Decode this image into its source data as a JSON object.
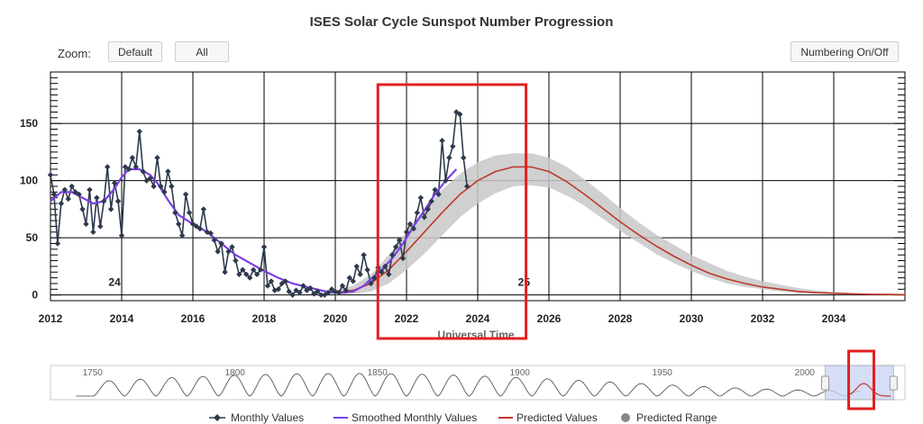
{
  "title": "ISES Solar Cycle Sunspot Number Progression",
  "zoom": {
    "label": "Zoom:",
    "buttons": [
      "Default",
      "All"
    ]
  },
  "numbering_button": "Numbering On/Off",
  "colors": {
    "monthly": "#2d3a4d",
    "smoothed": "#7b3fe4",
    "predicted": "#c0392b",
    "range": "#c8c8c8",
    "highlight": "#e02020",
    "navigator": "#c8d2f5"
  },
  "chart_data": {
    "type": "line",
    "title": "ISES Solar Cycle Sunspot Number Progression",
    "xlabel": "Universal Time",
    "ylabel": "",
    "xlim": [
      2012,
      2036
    ],
    "ylim": [
      -5,
      195
    ],
    "x_ticks": [
      "2012",
      "2014",
      "2016",
      "2018",
      "2020",
      "2022",
      "2024",
      "2026",
      "2028",
      "2030",
      "2032",
      "2034"
    ],
    "y_ticks": [
      "0",
      "50",
      "100",
      "150"
    ],
    "cycle_labels": [
      {
        "text": "24",
        "x": 2013.8,
        "y": 8
      },
      {
        "text": "25",
        "x": 2025.3,
        "y": 8
      }
    ],
    "series": [
      {
        "name": "Monthly Values",
        "kind": "monthly",
        "x": [
          2012.0,
          2012.1,
          2012.2,
          2012.3,
          2012.4,
          2012.5,
          2012.6,
          2012.7,
          2012.8,
          2012.9,
          2013.0,
          2013.1,
          2013.2,
          2013.3,
          2013.4,
          2013.5,
          2013.6,
          2013.7,
          2013.8,
          2013.9,
          2014.0,
          2014.1,
          2014.2,
          2014.3,
          2014.4,
          2014.5,
          2014.6,
          2014.7,
          2014.8,
          2014.9,
          2015.0,
          2015.1,
          2015.2,
          2015.3,
          2015.4,
          2015.5,
          2015.6,
          2015.7,
          2015.8,
          2015.9,
          2016.0,
          2016.1,
          2016.2,
          2016.3,
          2016.4,
          2016.5,
          2016.6,
          2016.7,
          2016.8,
          2016.9,
          2017.0,
          2017.1,
          2017.2,
          2017.3,
          2017.4,
          2017.5,
          2017.6,
          2017.7,
          2017.8,
          2017.9,
          2018.0,
          2018.1,
          2018.2,
          2018.3,
          2018.4,
          2018.5,
          2018.6,
          2018.7,
          2018.8,
          2018.9,
          2019.0,
          2019.1,
          2019.2,
          2019.3,
          2019.4,
          2019.5,
          2019.6,
          2019.7,
          2019.8,
          2019.9,
          2020.0,
          2020.1,
          2020.2,
          2020.3,
          2020.4,
          2020.5,
          2020.6,
          2020.7,
          2020.8,
          2020.9,
          2021.0,
          2021.1,
          2021.2,
          2021.3,
          2021.4,
          2021.5,
          2021.6,
          2021.7,
          2021.8,
          2021.9,
          2022.0,
          2022.1,
          2022.2,
          2022.3,
          2022.4,
          2022.5,
          2022.6,
          2022.7,
          2022.8,
          2022.9,
          2023.0,
          2023.1,
          2023.2,
          2023.3,
          2023.4,
          2023.5,
          2023.6,
          2023.7
        ],
        "y": [
          105,
          88,
          45,
          80,
          92,
          84,
          95,
          90,
          88,
          75,
          62,
          92,
          55,
          85,
          60,
          82,
          112,
          75,
          98,
          82,
          52,
          112,
          110,
          120,
          112,
          143,
          108,
          100,
          102,
          95,
          120,
          95,
          90,
          108,
          95,
          72,
          62,
          52,
          88,
          72,
          62,
          60,
          58,
          75,
          55,
          54,
          48,
          38,
          45,
          20,
          38,
          42,
          30,
          18,
          22,
          18,
          15,
          22,
          18,
          22,
          42,
          8,
          12,
          4,
          5,
          10,
          12,
          3,
          0,
          4,
          2,
          8,
          4,
          6,
          1,
          3,
          0,
          0,
          2,
          5,
          3,
          2,
          8,
          4,
          15,
          12,
          25,
          18,
          35,
          22,
          10,
          15,
          24,
          20,
          25,
          18,
          35,
          42,
          48,
          32,
          55,
          62,
          58,
          72,
          85,
          68,
          75,
          82,
          92,
          88,
          135,
          100,
          120,
          130,
          160,
          158,
          120,
          95
        ],
        "color": "#2d3a4d"
      },
      {
        "name": "Smoothed Monthly Values",
        "kind": "smoothed",
        "x": [
          2012.0,
          2012.3,
          2012.6,
          2012.9,
          2013.2,
          2013.5,
          2013.8,
          2014.0,
          2014.2,
          2014.5,
          2014.8,
          2015.0,
          2015.3,
          2015.6,
          2016.0,
          2016.4,
          2016.8,
          2017.2,
          2017.6,
          2018.0,
          2018.4,
          2018.8,
          2019.2,
          2019.6,
          2019.9,
          2020.2,
          2020.5,
          2020.8,
          2021.0,
          2021.3,
          2021.6,
          2021.9,
          2022.2,
          2022.5,
          2022.8,
          2023.1,
          2023.4
        ],
        "y": [
          82,
          90,
          90,
          85,
          80,
          82,
          93,
          103,
          110,
          110,
          105,
          98,
          83,
          70,
          62,
          55,
          45,
          35,
          28,
          21,
          15,
          10,
          7,
          4,
          2,
          2,
          3,
          8,
          14,
          22,
          32,
          45,
          60,
          74,
          88,
          100,
          110
        ],
        "color": "#7b3fe4"
      },
      {
        "name": "Predicted Values",
        "kind": "predicted",
        "x": [
          2020.0,
          2020.5,
          2021.0,
          2021.5,
          2022.0,
          2022.5,
          2023.0,
          2023.5,
          2024.0,
          2024.5,
          2025.0,
          2025.5,
          2026.0,
          2026.5,
          2027.0,
          2027.5,
          2028.0,
          2028.5,
          2029.0,
          2029.5,
          2030.0,
          2030.5,
          2031.0,
          2031.5,
          2032.0,
          2032.5,
          2033.0,
          2033.5,
          2034.0,
          2034.5,
          2035.0,
          2035.5,
          2036.0
        ],
        "y": [
          2,
          4,
          10,
          22,
          38,
          55,
          72,
          88,
          100,
          108,
          112,
          112,
          108,
          99,
          88,
          76,
          64,
          53,
          43,
          34,
          26,
          19,
          14,
          10,
          7,
          5,
          3,
          2,
          1.5,
          1,
          0.6,
          0.4,
          0.3
        ],
        "color": "#c0392b"
      },
      {
        "name": "Predicted Range",
        "kind": "range",
        "x": [
          2020.0,
          2020.5,
          2021.0,
          2021.5,
          2022.0,
          2022.5,
          2023.0,
          2023.5,
          2024.0,
          2024.5,
          2025.0,
          2025.5,
          2026.0,
          2026.5,
          2027.0,
          2027.5,
          2028.0,
          2028.5,
          2029.0,
          2029.5,
          2030.0,
          2030.5,
          2031.0,
          2031.5,
          2032.0,
          2032.5,
          2033.0,
          2033.5,
          2034.0,
          2034.5,
          2035.0,
          2035.5,
          2036.0
        ],
        "low": [
          0,
          1,
          3,
          10,
          22,
          36,
          52,
          68,
          80,
          89,
          95,
          96,
          94,
          87,
          78,
          67,
          56,
          46,
          36,
          28,
          21,
          15,
          10,
          7,
          5,
          3,
          2,
          1,
          0.5,
          0.3,
          0.2,
          0.1,
          0
        ],
        "high": [
          4,
          8,
          18,
          35,
          55,
          75,
          92,
          106,
          116,
          122,
          124,
          124,
          120,
          112,
          101,
          89,
          76,
          64,
          53,
          44,
          35,
          28,
          21,
          16,
          12,
          9,
          6,
          4,
          2.5,
          1.8,
          1.2,
          0.8,
          0.5
        ],
        "color": "#c8c8c8"
      }
    ],
    "navigator": {
      "labels": [
        "1750",
        "1800",
        "1850",
        "1900",
        "1950",
        "2000"
      ]
    },
    "legend": {
      "position": "bottom",
      "items": [
        "Monthly Values",
        "Smoothed Monthly Values",
        "Predicted Values",
        "Predicted Range"
      ]
    },
    "annotations": [
      {
        "type": "highlight-box",
        "from": 2021.5,
        "to": 2024.8
      }
    ]
  }
}
